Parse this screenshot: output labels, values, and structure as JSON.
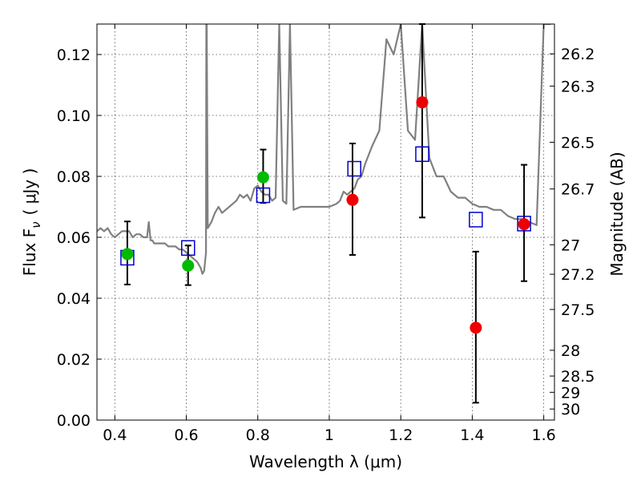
{
  "chart_data": {
    "type": "scatter",
    "xlabel": "Wavelength  λ (μm)",
    "ylabel": "Flux  F",
    "ylabel_sub": "ν",
    "ylabel_unit": "( μJy )",
    "y2label": "Magnitude (AB)",
    "xlim": [
      0.35,
      1.63
    ],
    "ylim": [
      0.0,
      0.13
    ],
    "grid": true,
    "x_ticks": [
      0.4,
      0.6,
      0.8,
      1.0,
      1.2,
      1.4,
      1.6
    ],
    "x_tick_labels": [
      "0.4",
      "0.6",
      "0.8",
      "1",
      "1.2",
      "1.4",
      "1.6"
    ],
    "y_ticks": [
      0.0,
      0.02,
      0.04,
      0.06,
      0.08,
      0.1,
      0.12
    ],
    "y_tick_labels": [
      "0.00",
      "0.02",
      "0.04",
      "0.06",
      "0.08",
      "0.10",
      "0.12"
    ],
    "mag_ticks": [
      26.2,
      26.3,
      26.5,
      26.7,
      27,
      27.2,
      27.5,
      28,
      28.5,
      29,
      30
    ],
    "mag_tick_labels": [
      "26.2",
      "26.3",
      "26.5",
      "26.7",
      "27",
      "27.2",
      "27.5",
      "28",
      "28.5",
      "29",
      "30"
    ],
    "series": [
      {
        "name": "Model spectrum",
        "kind": "line",
        "color": "#808080",
        "x": [
          0.35,
          0.36,
          0.37,
          0.38,
          0.39,
          0.4,
          0.41,
          0.42,
          0.43,
          0.44,
          0.45,
          0.46,
          0.47,
          0.48,
          0.49,
          0.495,
          0.5,
          0.505,
          0.51,
          0.52,
          0.53,
          0.54,
          0.55,
          0.56,
          0.57,
          0.58,
          0.59,
          0.6,
          0.61,
          0.62,
          0.63,
          0.64,
          0.645,
          0.65,
          0.655,
          0.656,
          0.657,
          0.66,
          0.665,
          0.67,
          0.68,
          0.69,
          0.7,
          0.71,
          0.72,
          0.73,
          0.74,
          0.75,
          0.76,
          0.77,
          0.78,
          0.79,
          0.8,
          0.81,
          0.82,
          0.83,
          0.84,
          0.85,
          0.86,
          0.87,
          0.88,
          0.89,
          0.9,
          0.92,
          0.94,
          0.96,
          0.98,
          1.0,
          1.02,
          1.03,
          1.04,
          1.05,
          1.06,
          1.07,
          1.08,
          1.09,
          1.1,
          1.12,
          1.14,
          1.16,
          1.18,
          1.2,
          1.22,
          1.24,
          1.26,
          1.28,
          1.3,
          1.32,
          1.34,
          1.36,
          1.38,
          1.4,
          1.42,
          1.44,
          1.46,
          1.48,
          1.5,
          1.52,
          1.54,
          1.56,
          1.58,
          1.6,
          1.62
        ],
        "y": [
          0.062,
          0.063,
          0.062,
          0.063,
          0.061,
          0.06,
          0.061,
          0.062,
          0.062,
          0.062,
          0.06,
          0.061,
          0.061,
          0.06,
          0.06,
          0.065,
          0.059,
          0.059,
          0.058,
          0.058,
          0.058,
          0.058,
          0.057,
          0.057,
          0.057,
          0.056,
          0.056,
          0.055,
          0.054,
          0.053,
          0.052,
          0.05,
          0.048,
          0.049,
          0.055,
          0.13,
          0.13,
          0.063,
          0.064,
          0.065,
          0.068,
          0.07,
          0.068,
          0.069,
          0.07,
          0.071,
          0.072,
          0.074,
          0.073,
          0.074,
          0.072,
          0.076,
          0.077,
          0.075,
          0.074,
          0.074,
          0.072,
          0.073,
          0.13,
          0.072,
          0.071,
          0.13,
          0.069,
          0.07,
          0.07,
          0.07,
          0.07,
          0.07,
          0.071,
          0.072,
          0.075,
          0.074,
          0.075,
          0.076,
          0.079,
          0.08,
          0.084,
          0.09,
          0.095,
          0.125,
          0.12,
          0.13,
          0.095,
          0.092,
          0.13,
          0.086,
          0.08,
          0.08,
          0.075,
          0.073,
          0.073,
          0.071,
          0.07,
          0.07,
          0.069,
          0.069,
          0.067,
          0.066,
          0.066,
          0.065,
          0.064,
          0.13,
          0.13
        ]
      },
      {
        "name": "Model photometry",
        "kind": "open-square",
        "color": "#0000cc",
        "x": [
          0.435,
          0.605,
          0.815,
          1.07,
          1.26,
          1.41,
          1.545
        ],
        "y": [
          0.0533,
          0.0565,
          0.0738,
          0.0825,
          0.0873,
          0.0658,
          0.0645
        ]
      },
      {
        "name": "Observed (green)",
        "kind": "filled-circle",
        "color": "#00bb00",
        "x": [
          0.435,
          0.605,
          0.815
        ],
        "y": [
          0.0545,
          0.0507,
          0.0797
        ],
        "yerr_low": [
          0.0445,
          0.0443,
          0.0713
        ],
        "yerr_high": [
          0.0652,
          0.0573,
          0.0888
        ]
      },
      {
        "name": "Observed (red)",
        "kind": "filled-circle",
        "color": "#ee0000",
        "x": [
          1.065,
          1.26,
          1.41,
          1.545
        ],
        "y": [
          0.0723,
          0.1043,
          0.0303,
          0.0643
        ],
        "yerr_low": [
          0.0542,
          0.0665,
          0.0057,
          0.0456
        ],
        "yerr_high": [
          0.0908,
          0.13,
          0.0553,
          0.0838
        ]
      }
    ]
  }
}
